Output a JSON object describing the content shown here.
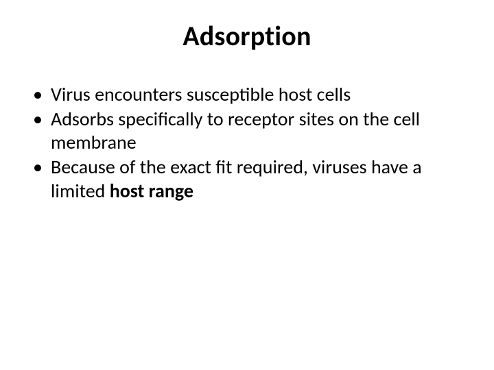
{
  "slide": {
    "title": "Adsorption",
    "bullets": [
      {
        "text": "Virus encounters susceptible host cells"
      },
      {
        "text": "Adsorbs specifically to receptor sites on the cell membrane"
      },
      {
        "prefix": "Because of the exact fit required, viruses have a limited ",
        "bold": "host range"
      }
    ]
  },
  "style": {
    "background_color": "#ffffff",
    "text_color": "#000000",
    "title_fontsize": 40,
    "title_fontweight": 700,
    "body_fontsize": 28,
    "bullet_char": "•",
    "font_family": "Calibri"
  }
}
